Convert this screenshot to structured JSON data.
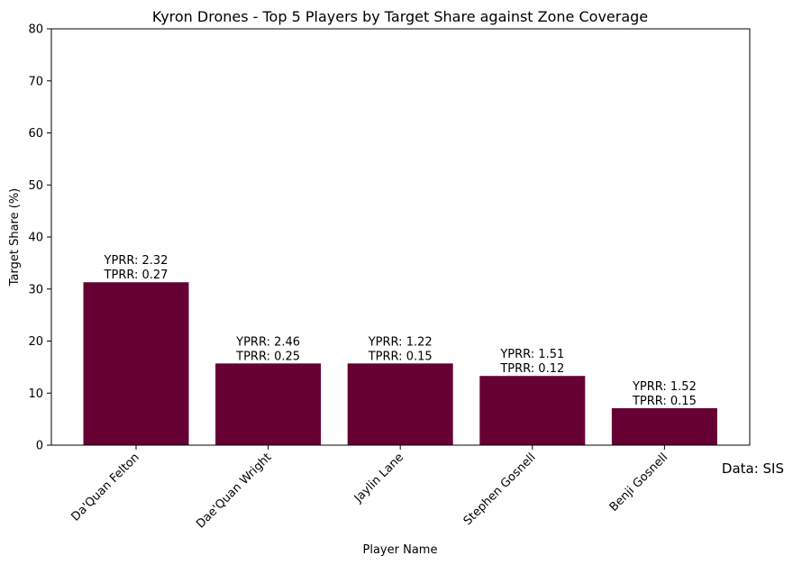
{
  "chart_data": {
    "type": "bar",
    "title": "Kyron Drones - Top 5 Players by Target Share against Zone Coverage",
    "xlabel": "Player Name",
    "ylabel": "Target Share (%)",
    "ylim": [
      0,
      80
    ],
    "yticks": [
      0,
      10,
      20,
      30,
      40,
      50,
      60,
      70,
      80
    ],
    "grid": false,
    "bar_color": "#660033",
    "categories": [
      "Da'Quan Felton",
      "Dae'Quan Wright",
      "Jaylin Lane",
      "Stephen Gosnell",
      "Benji Gosnell"
    ],
    "values": [
      31.3,
      15.7,
      15.7,
      13.3,
      7.1
    ],
    "annotations": [
      [
        "YPRR: 2.32",
        "TPRR: 0.27"
      ],
      [
        "YPRR: 2.46",
        "TPRR: 0.25"
      ],
      [
        "YPRR: 1.22",
        "TPRR: 0.15"
      ],
      [
        "YPRR: 1.51",
        "TPRR: 0.12"
      ],
      [
        "YPRR: 1.52",
        "TPRR: 0.15"
      ]
    ]
  },
  "source_note": "Data: SIS"
}
